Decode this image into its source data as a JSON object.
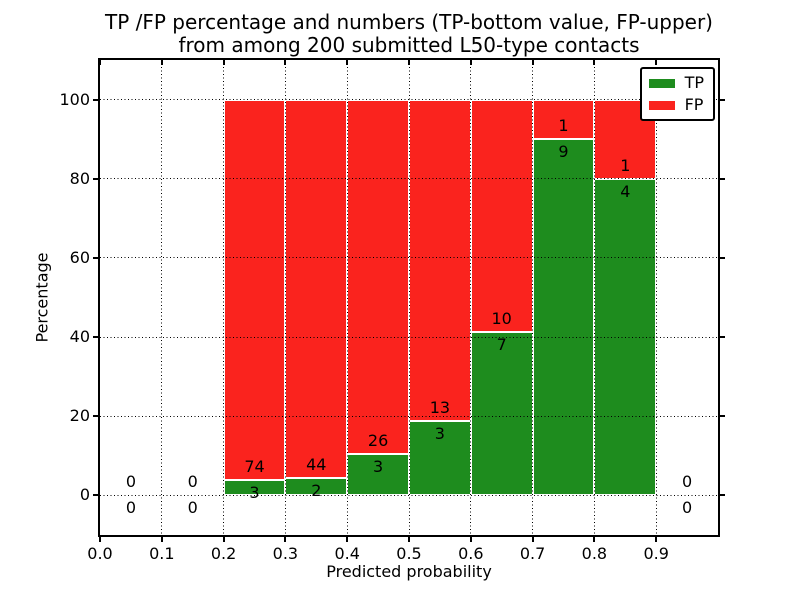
{
  "figure": {
    "title_line1": "TP /FP percentage and numbers (TP-bottom value, FP-upper)",
    "title_line2": "from among 200 submitted L50-type contacts"
  },
  "chart_data": {
    "type": "bar",
    "stacked": true,
    "title": "TP /FP percentage and numbers (TP-bottom value, FP-upper)\nfrom among 200 submitted L50-type contacts",
    "xlabel": "Predicted probability",
    "ylabel": "Percentage",
    "xlim": [
      0.0,
      1.0
    ],
    "ylim": [
      -10,
      110
    ],
    "grid": true,
    "grid_style": "dotted",
    "xticks": [
      0.0,
      0.1,
      0.2,
      0.3,
      0.4,
      0.5,
      0.6,
      0.7,
      0.8,
      0.9
    ],
    "xtick_labels": [
      "0.0",
      "0.1",
      "0.2",
      "0.3",
      "0.4",
      "0.5",
      "0.6",
      "0.7",
      "0.8",
      "0.9"
    ],
    "yticks": [
      0,
      20,
      40,
      60,
      80,
      100
    ],
    "ytick_labels": [
      "0",
      "20",
      "40",
      "60",
      "80",
      "100"
    ],
    "total_contacts": 200,
    "legend": {
      "position": "upper right",
      "entries": [
        {
          "label": "TP",
          "color": "#1e8c1e"
        },
        {
          "label": "FP",
          "color": "#fa231e"
        }
      ]
    },
    "bin_width": 0.1,
    "bins": [
      {
        "x_start": 0.0,
        "x_end": 0.1,
        "tp_count": 0,
        "fp_count": 0,
        "tp_pct": 0,
        "fp_pct": 0
      },
      {
        "x_start": 0.1,
        "x_end": 0.2,
        "tp_count": 0,
        "fp_count": 0,
        "tp_pct": 0,
        "fp_pct": 0
      },
      {
        "x_start": 0.2,
        "x_end": 0.3,
        "tp_count": 3,
        "fp_count": 74,
        "tp_pct": 3.9,
        "fp_pct": 96.1
      },
      {
        "x_start": 0.3,
        "x_end": 0.4,
        "tp_count": 2,
        "fp_count": 44,
        "tp_pct": 4.35,
        "fp_pct": 95.65
      },
      {
        "x_start": 0.4,
        "x_end": 0.5,
        "tp_count": 3,
        "fp_count": 26,
        "tp_pct": 10.34,
        "fp_pct": 89.66
      },
      {
        "x_start": 0.5,
        "x_end": 0.6,
        "tp_count": 3,
        "fp_count": 13,
        "tp_pct": 18.75,
        "fp_pct": 81.25
      },
      {
        "x_start": 0.6,
        "x_end": 0.7,
        "tp_count": 7,
        "fp_count": 10,
        "tp_pct": 41.18,
        "fp_pct": 58.82
      },
      {
        "x_start": 0.7,
        "x_end": 0.8,
        "tp_count": 9,
        "fp_count": 1,
        "tp_pct": 90,
        "fp_pct": 10
      },
      {
        "x_start": 0.8,
        "x_end": 0.9,
        "tp_count": 4,
        "fp_count": 1,
        "tp_pct": 80,
        "fp_pct": 20
      },
      {
        "x_start": 0.9,
        "x_end": 1.0,
        "tp_count": 0,
        "fp_count": 0,
        "tp_pct": 0,
        "fp_pct": 0
      }
    ],
    "colors": {
      "tp_green": "#1e8c1e",
      "fp_red": "#fa231e",
      "grid": "#000000",
      "text": "#000000",
      "background": "#ffffff"
    }
  }
}
